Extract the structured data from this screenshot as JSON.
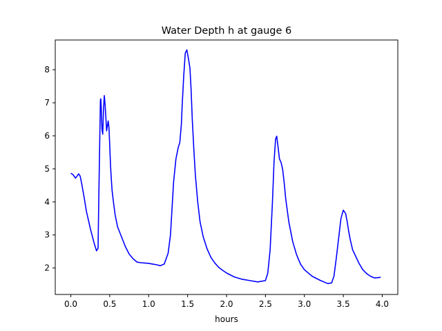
{
  "chart_data": {
    "type": "line",
    "title": "Water Depth h at gauge 6",
    "xlabel": "hours",
    "ylabel": "",
    "xlim": [
      -0.2,
      4.2
    ],
    "ylim": [
      1.2,
      8.9
    ],
    "xticks": [
      0.0,
      0.5,
      1.0,
      1.5,
      2.0,
      2.5,
      3.0,
      3.5,
      4.0
    ],
    "xtick_labels": [
      "0.0",
      "0.5",
      "1.0",
      "1.5",
      "2.0",
      "2.5",
      "3.0",
      "3.5",
      "4.0"
    ],
    "yticks": [
      2,
      3,
      4,
      5,
      6,
      7,
      8
    ],
    "ytick_labels": [
      "2",
      "3",
      "4",
      "5",
      "6",
      "7",
      "8"
    ],
    "grid": false,
    "legend": "none",
    "line_color": "#0000ff",
    "series": [
      {
        "x": [
          0.0,
          0.03,
          0.06,
          0.08,
          0.1,
          0.12,
          0.14,
          0.17,
          0.2,
          0.25,
          0.3,
          0.33,
          0.35,
          0.36,
          0.38,
          0.385,
          0.39,
          0.4,
          0.41,
          0.42,
          0.43,
          0.44,
          0.46,
          0.47,
          0.48,
          0.49,
          0.5,
          0.51,
          0.52,
          0.53,
          0.55,
          0.57,
          0.6,
          0.65,
          0.7,
          0.75,
          0.8,
          0.85,
          0.9,
          0.95,
          1.0,
          1.05,
          1.1,
          1.15,
          1.2,
          1.25,
          1.28,
          1.3,
          1.32,
          1.35,
          1.38,
          1.4,
          1.42,
          1.43,
          1.45,
          1.47,
          1.49,
          1.51,
          1.53,
          1.545,
          1.56,
          1.58,
          1.6,
          1.63,
          1.66,
          1.7,
          1.75,
          1.8,
          1.85,
          1.9,
          1.95,
          2.0,
          2.1,
          2.2,
          2.3,
          2.4,
          2.5,
          2.53,
          2.56,
          2.59,
          2.61,
          2.63,
          2.645,
          2.66,
          2.68,
          2.7,
          2.72,
          2.74,
          2.76,
          2.8,
          2.85,
          2.9,
          2.95,
          3.0,
          3.1,
          3.2,
          3.3,
          3.35,
          3.38,
          3.41,
          3.44,
          3.47,
          3.5,
          3.53,
          3.55,
          3.57,
          3.59,
          3.62,
          3.66,
          3.7,
          3.75,
          3.8,
          3.85,
          3.9,
          3.95,
          3.98
        ],
        "y": [
          4.87,
          4.82,
          4.72,
          4.78,
          4.85,
          4.78,
          4.55,
          4.15,
          3.72,
          3.2,
          2.75,
          2.52,
          2.6,
          4.2,
          7.08,
          7.12,
          6.9,
          6.2,
          6.05,
          6.8,
          7.22,
          6.95,
          6.15,
          6.3,
          6.45,
          6.25,
          5.7,
          5.1,
          4.7,
          4.35,
          3.95,
          3.6,
          3.25,
          2.95,
          2.65,
          2.42,
          2.28,
          2.18,
          2.16,
          2.15,
          2.14,
          2.12,
          2.1,
          2.07,
          2.12,
          2.45,
          3.0,
          3.8,
          4.6,
          5.3,
          5.65,
          5.8,
          6.35,
          6.9,
          7.8,
          8.5,
          8.6,
          8.35,
          8.05,
          7.4,
          6.5,
          5.6,
          4.8,
          4.0,
          3.4,
          2.95,
          2.58,
          2.32,
          2.15,
          2.02,
          1.93,
          1.85,
          1.73,
          1.66,
          1.62,
          1.58,
          1.62,
          1.85,
          2.55,
          4.0,
          5.2,
          5.9,
          5.99,
          5.7,
          5.3,
          5.2,
          5.0,
          4.6,
          4.1,
          3.4,
          2.8,
          2.4,
          2.12,
          1.95,
          1.75,
          1.63,
          1.53,
          1.55,
          1.75,
          2.3,
          2.9,
          3.5,
          3.75,
          3.65,
          3.4,
          3.1,
          2.85,
          2.55,
          2.35,
          2.15,
          1.95,
          1.83,
          1.75,
          1.7,
          1.71,
          1.72
        ]
      }
    ]
  }
}
